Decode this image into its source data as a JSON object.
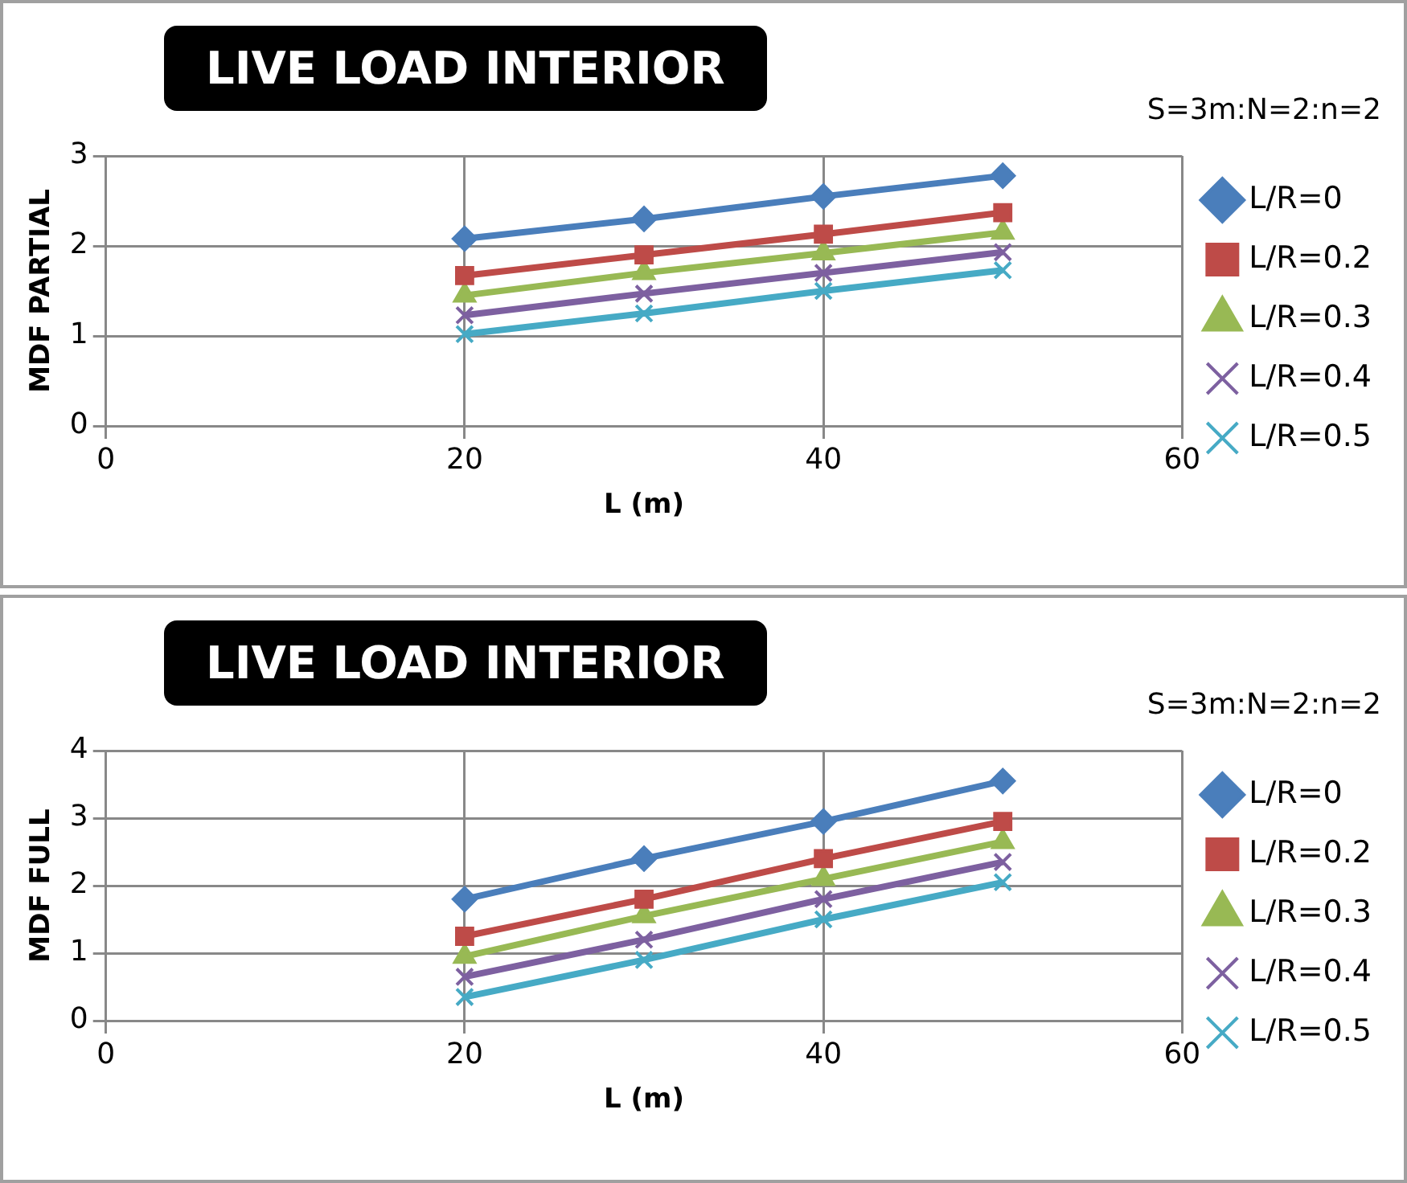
{
  "chart_data": [
    {
      "type": "line",
      "title": "LIVE LOAD INTERIOR",
      "legend_title": "S=3m:N=2:n=2",
      "xlabel": "L (m)",
      "ylabel": "MDF PARTIAL",
      "x": [
        20,
        30,
        40,
        50
      ],
      "xlim": [
        0,
        60
      ],
      "xticks": [
        0,
        20,
        40,
        60
      ],
      "ylim": [
        0,
        3
      ],
      "yticks": [
        0,
        1,
        2,
        3
      ],
      "grid": true,
      "legend": "right",
      "series": [
        {
          "name": "L/R=0",
          "color": "#4a7ebb",
          "marker": "diamond",
          "values": [
            2.08,
            2.3,
            2.55,
            2.78
          ]
        },
        {
          "name": "L/R=0.2",
          "color": "#be4b48",
          "marker": "square",
          "values": [
            1.67,
            1.9,
            2.13,
            2.37
          ]
        },
        {
          "name": "L/R=0.3",
          "color": "#98b954",
          "marker": "triangle",
          "values": [
            1.45,
            1.7,
            1.92,
            2.15
          ]
        },
        {
          "name": "L/R=0.4",
          "color": "#7d60a0",
          "marker": "cross",
          "values": [
            1.23,
            1.47,
            1.7,
            1.93
          ]
        },
        {
          "name": "L/R=0.5",
          "color": "#46aac5",
          "marker": "cross",
          "values": [
            1.02,
            1.25,
            1.5,
            1.73
          ]
        }
      ]
    },
    {
      "type": "line",
      "title": "LIVE LOAD INTERIOR",
      "legend_title": "S=3m:N=2:n=2",
      "xlabel": "L (m)",
      "ylabel": "MDF FULL",
      "x": [
        20,
        30,
        40,
        50
      ],
      "xlim": [
        0,
        60
      ],
      "xticks": [
        0,
        20,
        40,
        60
      ],
      "ylim": [
        0,
        4
      ],
      "yticks": [
        0,
        1,
        2,
        3,
        4
      ],
      "grid": true,
      "legend": "right",
      "series": [
        {
          "name": "L/R=0",
          "color": "#4a7ebb",
          "marker": "diamond",
          "values": [
            1.8,
            2.4,
            2.95,
            3.55
          ]
        },
        {
          "name": "L/R=0.2",
          "color": "#be4b48",
          "marker": "square",
          "values": [
            1.25,
            1.8,
            2.4,
            2.95
          ]
        },
        {
          "name": "L/R=0.3",
          "color": "#98b954",
          "marker": "triangle",
          "values": [
            0.95,
            1.55,
            2.1,
            2.65
          ]
        },
        {
          "name": "L/R=0.4",
          "color": "#7d60a0",
          "marker": "cross",
          "values": [
            0.65,
            1.2,
            1.8,
            2.35
          ]
        },
        {
          "name": "L/R=0.5",
          "color": "#46aac5",
          "marker": "cross",
          "values": [
            0.35,
            0.9,
            1.5,
            2.05
          ]
        }
      ]
    }
  ]
}
